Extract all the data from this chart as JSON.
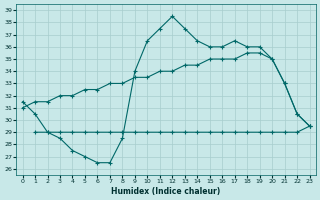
{
  "xlabel": "Humidex (Indice chaleur)",
  "bg_color": "#c8e8e8",
  "line_color": "#006868",
  "grid_color": "#a8cece",
  "xlim": [
    -0.5,
    23.5
  ],
  "ylim": [
    25.5,
    39.5
  ],
  "yticks": [
    26,
    27,
    28,
    29,
    30,
    31,
    32,
    33,
    34,
    35,
    36,
    37,
    38,
    39
  ],
  "xticks": [
    0,
    1,
    2,
    3,
    4,
    5,
    6,
    7,
    8,
    9,
    10,
    11,
    12,
    13,
    14,
    15,
    16,
    17,
    18,
    19,
    20,
    21,
    22,
    23
  ],
  "line1_x": [
    0,
    1,
    2,
    3,
    4,
    5,
    6,
    7,
    8,
    9,
    10,
    11,
    12,
    13,
    14,
    15,
    16,
    17,
    18,
    19,
    20,
    21,
    22,
    23
  ],
  "line1_y": [
    31.5,
    30.5,
    29.0,
    28.5,
    27.5,
    27.0,
    26.5,
    26.5,
    28.5,
    34.0,
    36.5,
    37.5,
    38.5,
    37.5,
    36.5,
    36.0,
    36.0,
    36.5,
    36.0,
    36.0,
    35.0,
    33.0,
    30.5,
    29.5
  ],
  "line2_x": [
    0,
    1,
    2,
    3,
    4,
    5,
    6,
    7,
    8,
    9,
    10,
    11,
    12,
    13,
    14,
    15,
    16,
    17,
    18,
    19,
    20,
    21,
    22,
    23
  ],
  "line2_y": [
    31.0,
    31.5,
    31.5,
    32.0,
    32.0,
    32.5,
    32.5,
    33.0,
    33.0,
    33.5,
    33.5,
    34.0,
    34.0,
    34.5,
    34.5,
    35.0,
    35.0,
    35.0,
    35.5,
    35.5,
    35.0,
    33.0,
    30.5,
    29.5
  ],
  "line3_x": [
    1,
    2,
    3,
    4,
    5,
    6,
    7,
    8,
    9,
    10,
    11,
    12,
    13,
    14,
    15,
    16,
    17,
    18,
    19,
    20,
    21,
    22,
    23
  ],
  "line3_y": [
    29.0,
    29.0,
    29.0,
    29.0,
    29.0,
    29.0,
    29.0,
    29.0,
    29.0,
    29.0,
    29.0,
    29.0,
    29.0,
    29.0,
    29.0,
    29.0,
    29.0,
    29.0,
    29.0,
    29.0,
    29.0,
    29.0,
    29.5
  ]
}
